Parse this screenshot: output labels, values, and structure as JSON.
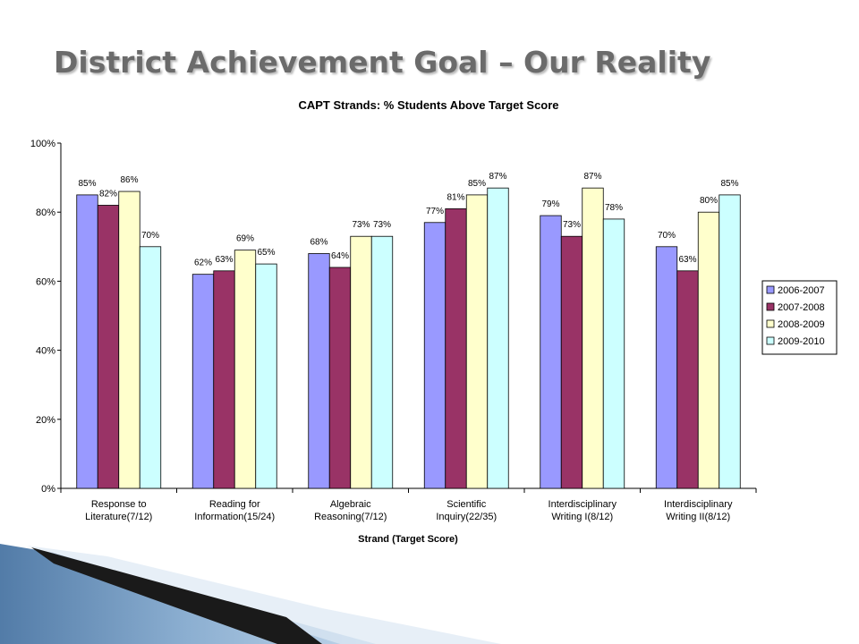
{
  "slide": {
    "title": "District Achievement Goal – Our Reality"
  },
  "colors": {
    "title": "#6b6b6b",
    "series": [
      "#9999ff",
      "#993366",
      "#ffffcc",
      "#ccffff"
    ],
    "corner": "#5e88b5"
  },
  "chart_data": {
    "type": "bar",
    "title": "CAPT Strands: % Students Above Target Score",
    "xlabel": "Strand (Target Score)",
    "ylabel": "",
    "ylim": [
      0,
      100
    ],
    "yticks": [
      "0%",
      "20%",
      "40%",
      "60%",
      "80%",
      "100%"
    ],
    "ytick_values": [
      0,
      20,
      40,
      60,
      80,
      100
    ],
    "grid": false,
    "legend_position": "right",
    "categories": [
      [
        "Response to",
        "Literature(7/12)"
      ],
      [
        "Reading for",
        "Information(15/24)"
      ],
      [
        "Algebraic",
        "Reasoning(7/12)"
      ],
      [
        "Scientific",
        "Inquiry(22/35)"
      ],
      [
        "Interdisciplinary",
        "Writing I(8/12)"
      ],
      [
        "Interdisciplinary",
        "Writing II(8/12)"
      ]
    ],
    "series": [
      {
        "name": "2006-2007",
        "values": [
          85,
          62,
          68,
          77,
          79,
          70
        ],
        "labels": [
          "85%",
          "62%",
          "68%",
          "77%",
          "79%",
          "70%"
        ]
      },
      {
        "name": "2007-2008",
        "values": [
          82,
          63,
          64,
          81,
          73,
          63
        ],
        "labels": [
          "82%",
          "63%",
          "64%",
          "81%",
          "73%",
          "63%"
        ]
      },
      {
        "name": "2008-2009",
        "values": [
          86,
          69,
          73,
          85,
          87,
          80
        ],
        "labels": [
          "86%",
          "69%",
          "73%",
          "85%",
          "87%",
          "80%"
        ]
      },
      {
        "name": "2009-2010",
        "values": [
          70,
          65,
          73,
          87,
          78,
          85
        ],
        "labels": [
          "70%",
          "65%",
          "73%",
          "87%",
          "78%",
          "85%"
        ]
      }
    ]
  }
}
